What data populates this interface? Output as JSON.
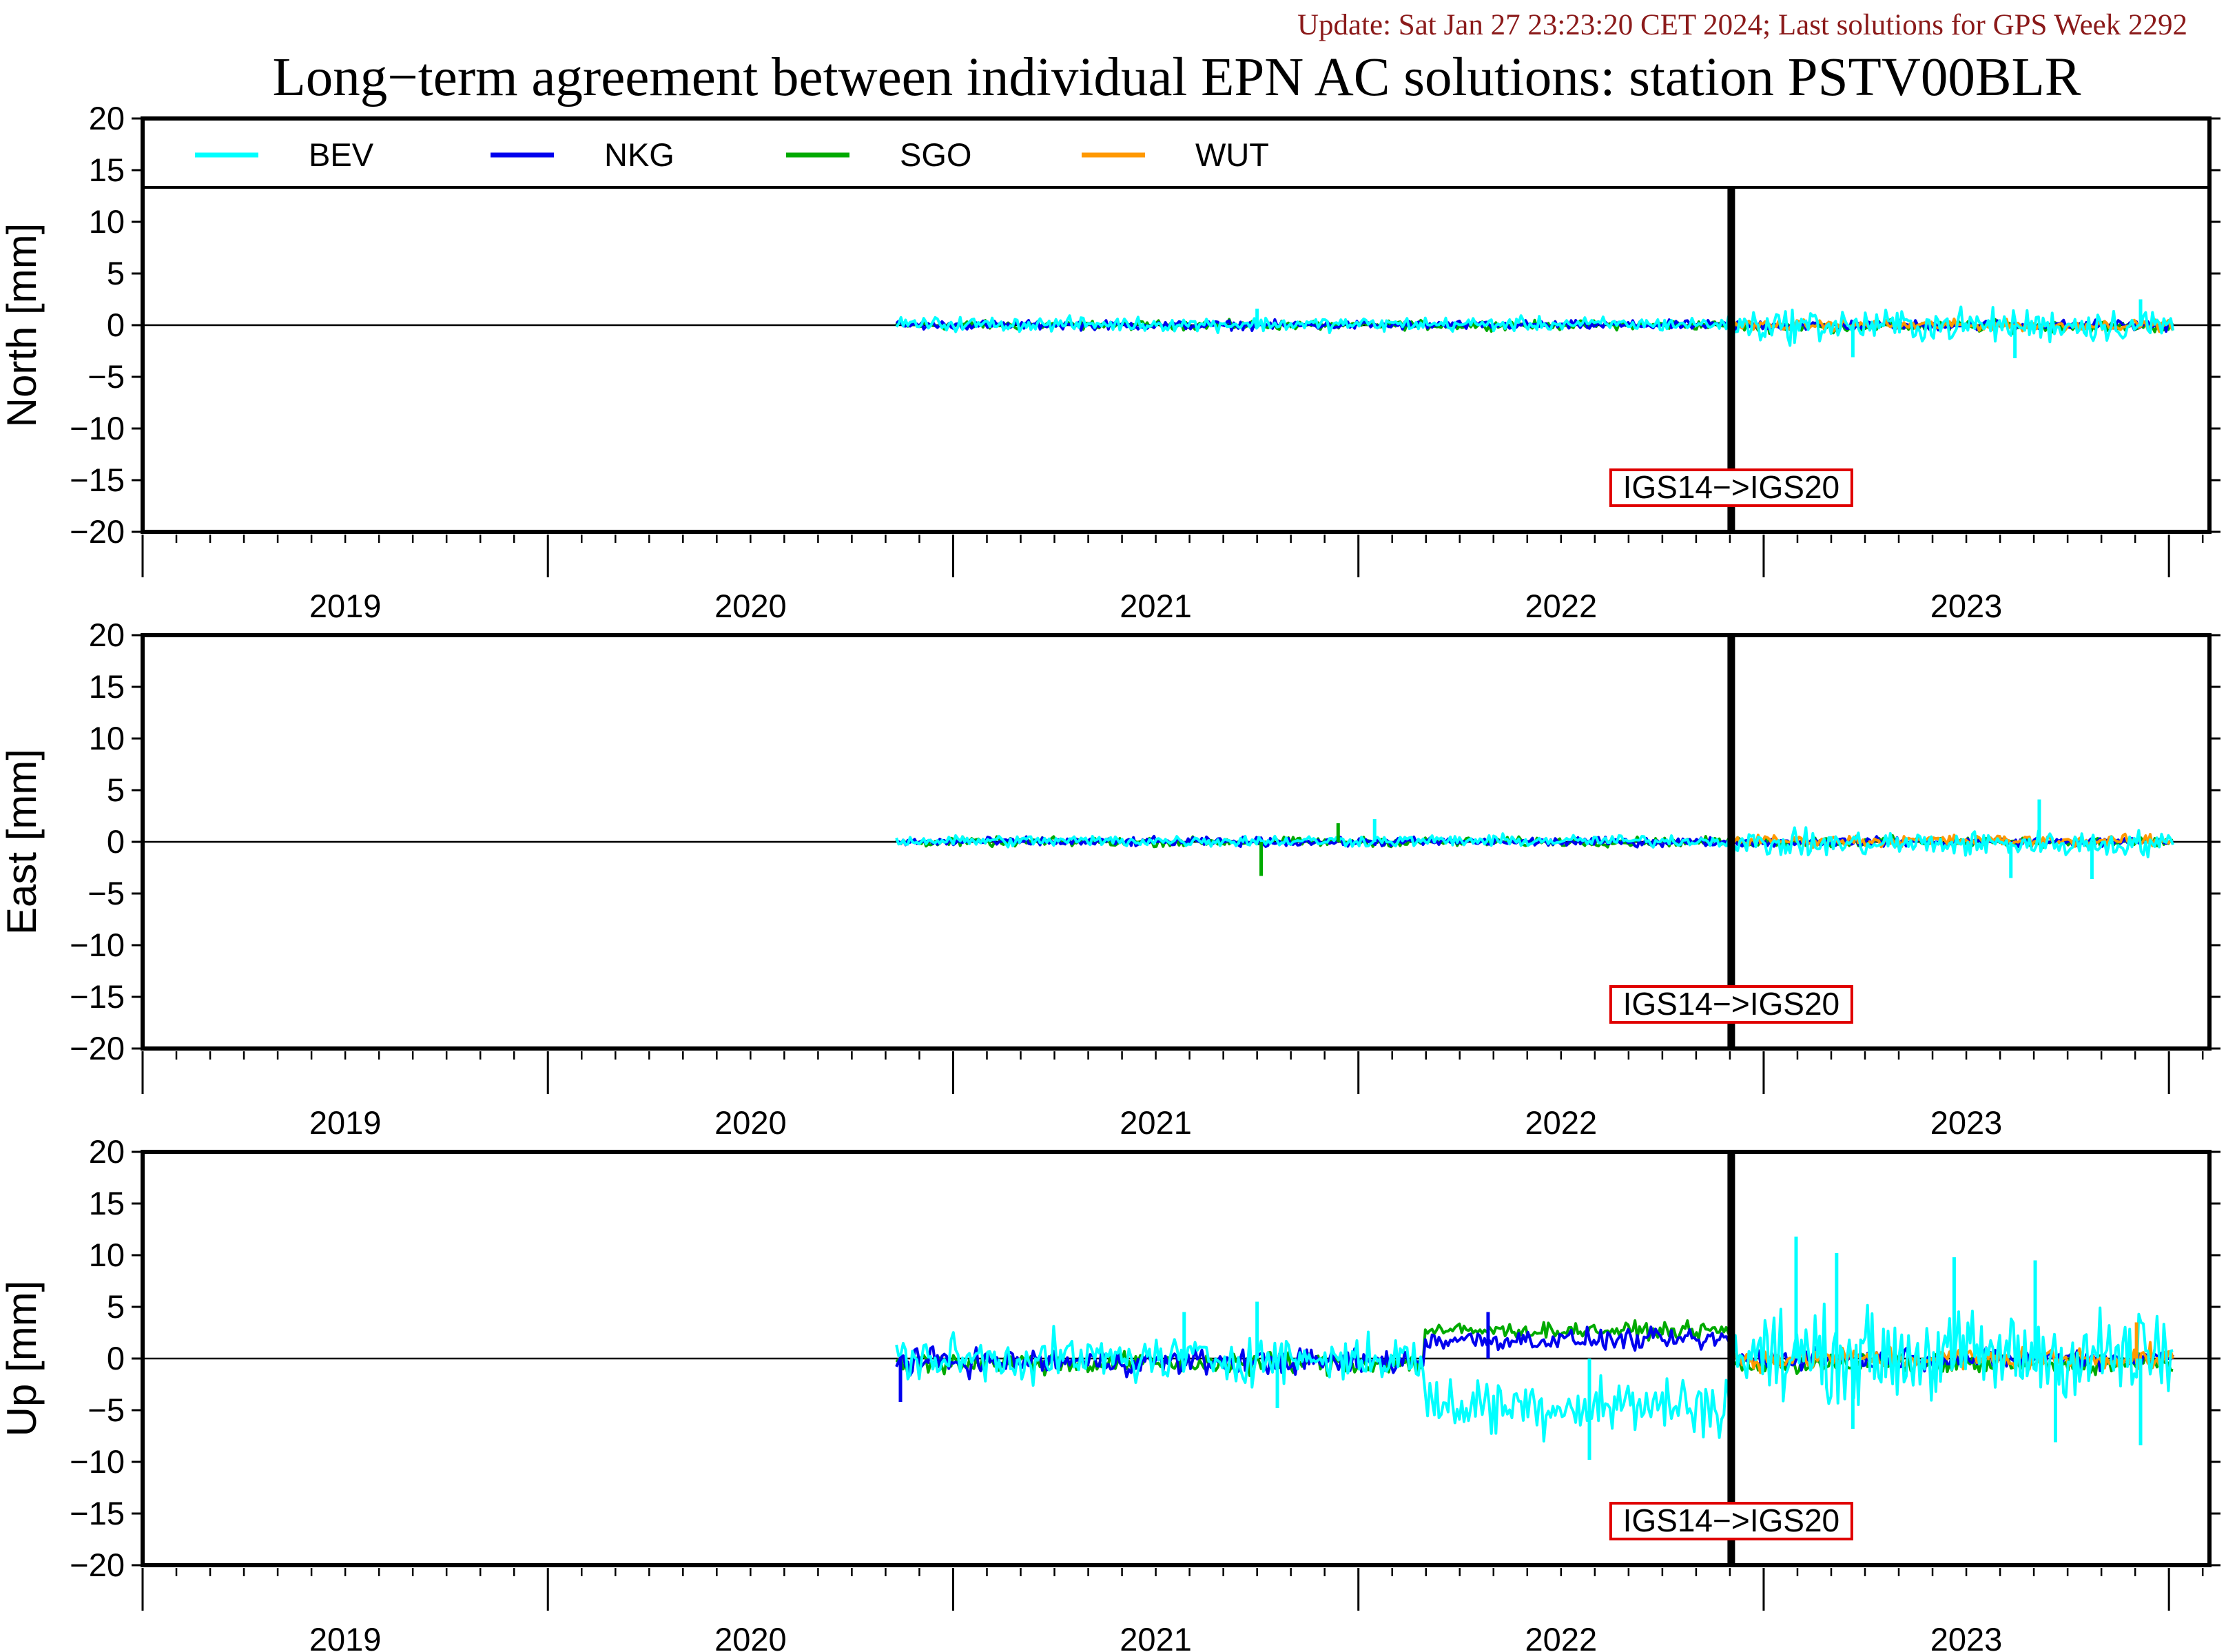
{
  "update_text": "Update: Sat Jan 27 23:23:20 CET 2024; Last solutions for GPS Week 2292",
  "chart_data": {
    "type": "line",
    "title": "Long−term agreement between individual EPN AC solutions: station PSTV00BLR",
    "legend_position": "top",
    "series_colors": {
      "BEV": "#00ffff",
      "NKG": "#0000ee",
      "SGO": "#00aa00",
      "WUT": "#ff9900"
    },
    "series_names": [
      "BEV",
      "NKG",
      "SGO",
      "WUT"
    ],
    "x_tick_labels": [
      "2019",
      "2020",
      "2021",
      "2022",
      "2023"
    ],
    "y_tick_labels": [
      "20",
      "15",
      "10",
      "5",
      "0",
      "−5",
      "−10",
      "−15",
      "−20"
    ],
    "xlim": [
      2018.5,
      2023.6
    ],
    "ylim": [
      -20,
      20
    ],
    "grid": false,
    "data_start": 2020.36,
    "data_end": 2023.51,
    "frame_change": {
      "x": 2022.42,
      "label": "IGS14−>IGS20"
    },
    "panels": [
      {
        "ylabel": "North [mm]",
        "show_legend": true,
        "segments": [
          {
            "from": 2020.36,
            "to": 2022.42,
            "series": {
              "BEV": {
                "mean": 0.1,
                "amp": 0.55
              },
              "NKG": {
                "mean": 0.0,
                "amp": 0.35
              },
              "SGO": {
                "mean": 0.0,
                "amp": 0.35
              }
            }
          },
          {
            "from": 2022.42,
            "to": 2023.51,
            "series": {
              "BEV": {
                "mean": 0.0,
                "amp": 1.3
              },
              "NKG": {
                "mean": 0.0,
                "amp": 0.4
              },
              "SGO": {
                "mean": -0.1,
                "amp": 0.45
              },
              "WUT": {
                "mean": 0.0,
                "amp": 0.4
              }
            }
          }
        ],
        "spikes": [
          {
            "series": "BEV",
            "x": 2021.25,
            "y": 1.6
          },
          {
            "series": "BEV",
            "x": 2023.43,
            "y": 2.5
          },
          {
            "series": "BEV",
            "x": 2022.72,
            "y": -3.1
          },
          {
            "series": "BEV",
            "x": 2023.12,
            "y": -3.2
          }
        ]
      },
      {
        "ylabel": "East [mm]",
        "show_legend": false,
        "segments": [
          {
            "from": 2020.36,
            "to": 2022.42,
            "series": {
              "BEV": {
                "mean": 0.1,
                "amp": 0.45
              },
              "NKG": {
                "mean": 0.0,
                "amp": 0.35
              },
              "SGO": {
                "mean": 0.0,
                "amp": 0.35
              }
            }
          },
          {
            "from": 2022.42,
            "to": 2023.51,
            "series": {
              "BEV": {
                "mean": -0.2,
                "amp": 1.0
              },
              "NKG": {
                "mean": 0.0,
                "amp": 0.35
              },
              "SGO": {
                "mean": 0.0,
                "amp": 0.4
              },
              "WUT": {
                "mean": 0.1,
                "amp": 0.45
              }
            }
          }
        ],
        "spikes": [
          {
            "series": "SGO",
            "x": 2021.26,
            "y": -3.3
          },
          {
            "series": "SGO",
            "x": 2021.45,
            "y": 1.8
          },
          {
            "series": "BEV",
            "x": 2021.54,
            "y": 2.2
          },
          {
            "series": "BEV",
            "x": 2023.18,
            "y": 4.1
          },
          {
            "series": "BEV",
            "x": 2023.31,
            "y": -3.6
          },
          {
            "series": "BEV",
            "x": 2023.11,
            "y": -3.5
          }
        ]
      },
      {
        "ylabel": "Up [mm]",
        "show_legend": false,
        "segments": [
          {
            "from": 2020.36,
            "to": 2021.66,
            "series": {
              "BEV": {
                "mean": 0.0,
                "amp": 1.8
              },
              "NKG": {
                "mean": -0.3,
                "amp": 1.0
              },
              "SGO": {
                "mean": -0.4,
                "amp": 0.9
              }
            }
          },
          {
            "from": 2021.66,
            "to": 2022.42,
            "series": {
              "BEV": {
                "mean": -4.5,
                "amp": 2.3
              },
              "NKG": {
                "mean": 1.8,
                "amp": 0.8
              },
              "SGO": {
                "mean": 2.7,
                "amp": 0.6
              }
            }
          },
          {
            "from": 2022.42,
            "to": 2023.51,
            "series": {
              "BEV": {
                "mean": 0.3,
                "amp": 3.5
              },
              "NKG": {
                "mean": 0.0,
                "amp": 0.8
              },
              "SGO": {
                "mean": -0.5,
                "amp": 0.8
              },
              "WUT": {
                "mean": 0.0,
                "amp": 0.9
              }
            }
          }
        ],
        "spikes": [
          {
            "series": "NKG",
            "x": 2020.37,
            "y": -4.2
          },
          {
            "series": "NKG",
            "x": 2021.82,
            "y": 4.5
          },
          {
            "series": "BEV",
            "x": 2021.07,
            "y": 4.5
          },
          {
            "series": "BEV",
            "x": 2021.25,
            "y": 5.5
          },
          {
            "series": "BEV",
            "x": 2021.3,
            "y": -4.8
          },
          {
            "series": "BEV",
            "x": 2022.07,
            "y": -9.8
          },
          {
            "series": "BEV",
            "x": 2022.58,
            "y": 11.8
          },
          {
            "series": "BEV",
            "x": 2022.68,
            "y": 10.2
          },
          {
            "series": "BEV",
            "x": 2022.72,
            "y": -6.8
          },
          {
            "series": "BEV",
            "x": 2022.97,
            "y": 9.8
          },
          {
            "series": "BEV",
            "x": 2023.17,
            "y": 9.5
          },
          {
            "series": "BEV",
            "x": 2023.22,
            "y": -8.1
          },
          {
            "series": "BEV",
            "x": 2023.43,
            "y": -8.4
          },
          {
            "series": "WUT",
            "x": 2023.42,
            "y": 3.5
          }
        ]
      }
    ]
  }
}
